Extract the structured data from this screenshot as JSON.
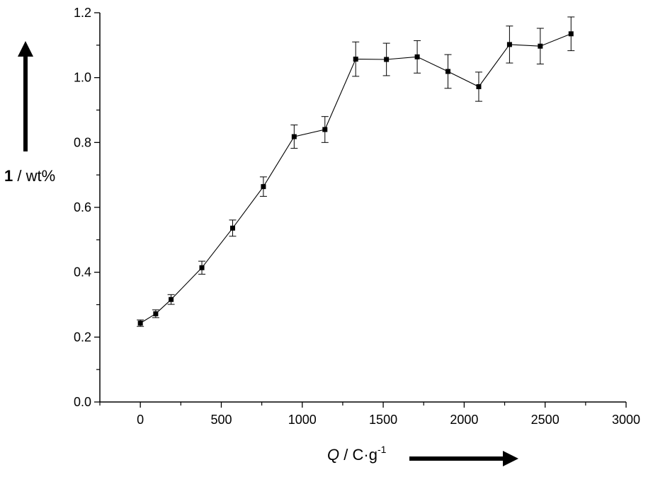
{
  "chart_data": {
    "type": "scatter",
    "connected": true,
    "error_bars": true,
    "marker": "square",
    "grid": false,
    "legend": "none",
    "xlim": [
      -250,
      3000
    ],
    "ylim": [
      0.0,
      1.2
    ],
    "x_ticks": [
      0,
      500,
      1000,
      1500,
      2000,
      2500,
      3000
    ],
    "x_tick_labels": [
      "0",
      "500",
      "1000",
      "1500",
      "2000",
      "2500",
      "3000"
    ],
    "y_ticks": [
      0.0,
      0.2,
      0.4,
      0.6,
      0.8,
      1.0,
      1.2
    ],
    "y_tick_labels": [
      "0.0",
      "0.2",
      "0.4",
      "0.6",
      "0.8",
      "1.0",
      "1.2"
    ],
    "xlabel": {
      "var": "Q",
      "mid": " / C",
      "dot": "·",
      "unit": "g",
      "sup": "-1"
    },
    "ylabel": {
      "bold": "1",
      "rest": " / wt%"
    },
    "series": [
      {
        "x": [
          0,
          95,
          190,
          380,
          570,
          760,
          950,
          1140,
          1330,
          1520,
          1710,
          1900,
          2090,
          2280,
          2470,
          2660
        ],
        "y": [
          0.243,
          0.272,
          0.316,
          0.414,
          0.536,
          0.664,
          0.818,
          0.84,
          1.057,
          1.056,
          1.064,
          1.019,
          0.972,
          1.102,
          1.097,
          1.135
        ],
        "err": [
          0.01,
          0.012,
          0.015,
          0.02,
          0.025,
          0.03,
          0.036,
          0.04,
          0.053,
          0.05,
          0.05,
          0.052,
          0.045,
          0.057,
          0.055,
          0.052
        ]
      }
    ]
  }
}
